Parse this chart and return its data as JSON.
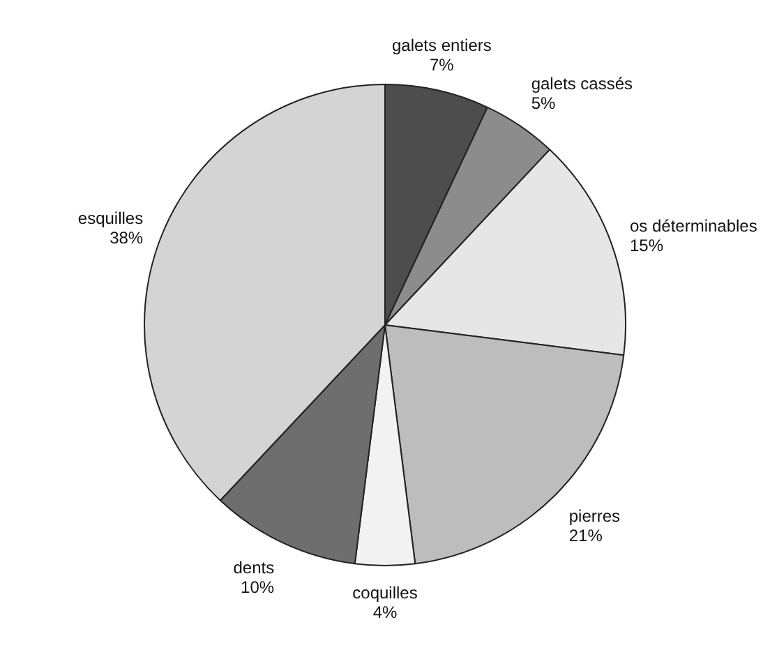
{
  "chart_data": {
    "type": "pie",
    "categories": [
      "galets entiers",
      "galets cassés",
      "os déterminables",
      "pierres",
      "coquilles",
      "dents",
      "esquilles"
    ],
    "values": [
      7,
      5,
      15,
      21,
      4,
      10,
      38
    ],
    "value_labels": [
      "7%",
      "5%",
      "15%",
      "21%",
      "4%",
      "10%",
      "38%"
    ],
    "colors": [
      "#4d4d4d",
      "#8c8c8c",
      "#e6e6e6",
      "#bdbdbd",
      "#f2f2f2",
      "#6e6e6e",
      "#d4d4d4"
    ],
    "legend": false
  }
}
